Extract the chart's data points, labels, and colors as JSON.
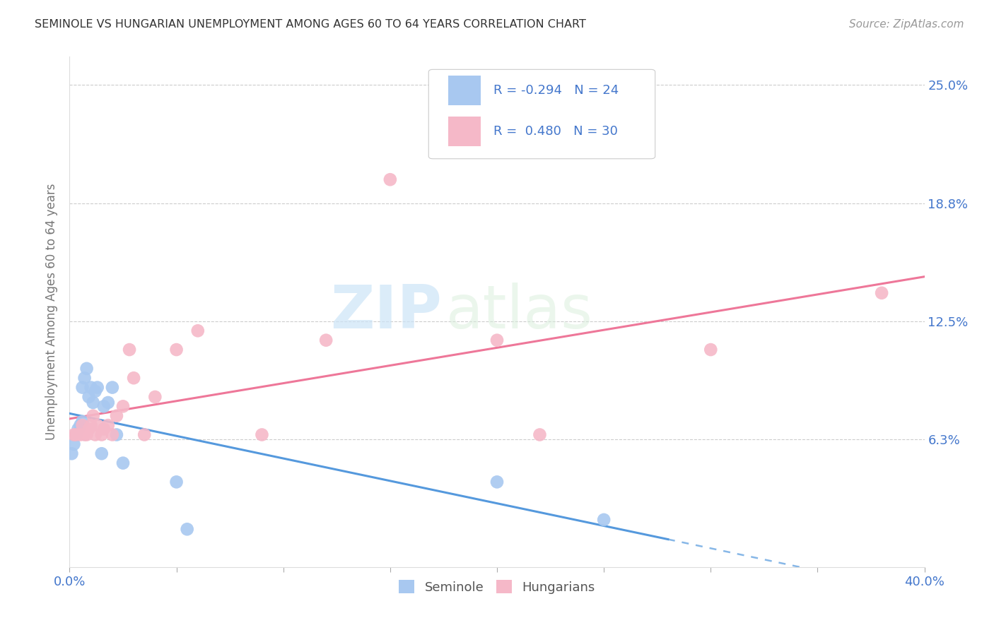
{
  "title": "SEMINOLE VS HUNGARIAN UNEMPLOYMENT AMONG AGES 60 TO 64 YEARS CORRELATION CHART",
  "source": "Source: ZipAtlas.com",
  "ylabel": "Unemployment Among Ages 60 to 64 years",
  "xlim": [
    0.0,
    0.4
  ],
  "ylim": [
    -0.005,
    0.265
  ],
  "xticks": [
    0.0,
    0.05,
    0.1,
    0.15,
    0.2,
    0.25,
    0.3,
    0.35,
    0.4
  ],
  "xtick_show_labels": [
    true,
    false,
    false,
    false,
    false,
    false,
    false,
    false,
    true
  ],
  "xticklabels_shown": [
    "0.0%",
    "40.0%"
  ],
  "ytick_values": [
    0.0625,
    0.125,
    0.1875,
    0.25
  ],
  "ytick_labels": [
    "6.3%",
    "12.5%",
    "18.8%",
    "25.0%"
  ],
  "watermark_zip": "ZIP",
  "watermark_atlas": "atlas",
  "seminole_color": "#a8c8f0",
  "hungarian_color": "#f5b8c8",
  "seminole_line_color": "#5599dd",
  "hungarian_line_color": "#ee7799",
  "legend_R1": "-0.294",
  "legend_N1": "24",
  "legend_R2": "0.480",
  "legend_N2": "30",
  "legend_text_color": "#4477cc",
  "axis_label_color": "#4477cc",
  "grid_color": "#cccccc",
  "title_color": "#333333",
  "source_color": "#999999",
  "ylabel_color": "#777777",
  "seminole_x": [
    0.001,
    0.002,
    0.003,
    0.004,
    0.005,
    0.006,
    0.006,
    0.007,
    0.008,
    0.009,
    0.01,
    0.011,
    0.012,
    0.013,
    0.015,
    0.016,
    0.018,
    0.02,
    0.022,
    0.025,
    0.05,
    0.055,
    0.2,
    0.25
  ],
  "seminole_y": [
    0.055,
    0.06,
    0.065,
    0.068,
    0.07,
    0.072,
    0.09,
    0.095,
    0.1,
    0.085,
    0.09,
    0.082,
    0.088,
    0.09,
    0.055,
    0.08,
    0.082,
    0.09,
    0.065,
    0.05,
    0.04,
    0.015,
    0.04,
    0.02
  ],
  "hungarian_x": [
    0.002,
    0.003,
    0.005,
    0.006,
    0.007,
    0.008,
    0.009,
    0.01,
    0.011,
    0.012,
    0.013,
    0.015,
    0.016,
    0.018,
    0.02,
    0.022,
    0.025,
    0.028,
    0.03,
    0.035,
    0.04,
    0.05,
    0.06,
    0.09,
    0.12,
    0.15,
    0.2,
    0.22,
    0.3,
    0.38
  ],
  "hungarian_y": [
    0.065,
    0.065,
    0.065,
    0.07,
    0.065,
    0.065,
    0.068,
    0.07,
    0.075,
    0.065,
    0.07,
    0.065,
    0.068,
    0.07,
    0.065,
    0.075,
    0.08,
    0.11,
    0.095,
    0.065,
    0.085,
    0.11,
    0.12,
    0.065,
    0.115,
    0.2,
    0.115,
    0.065,
    0.11,
    0.14
  ]
}
